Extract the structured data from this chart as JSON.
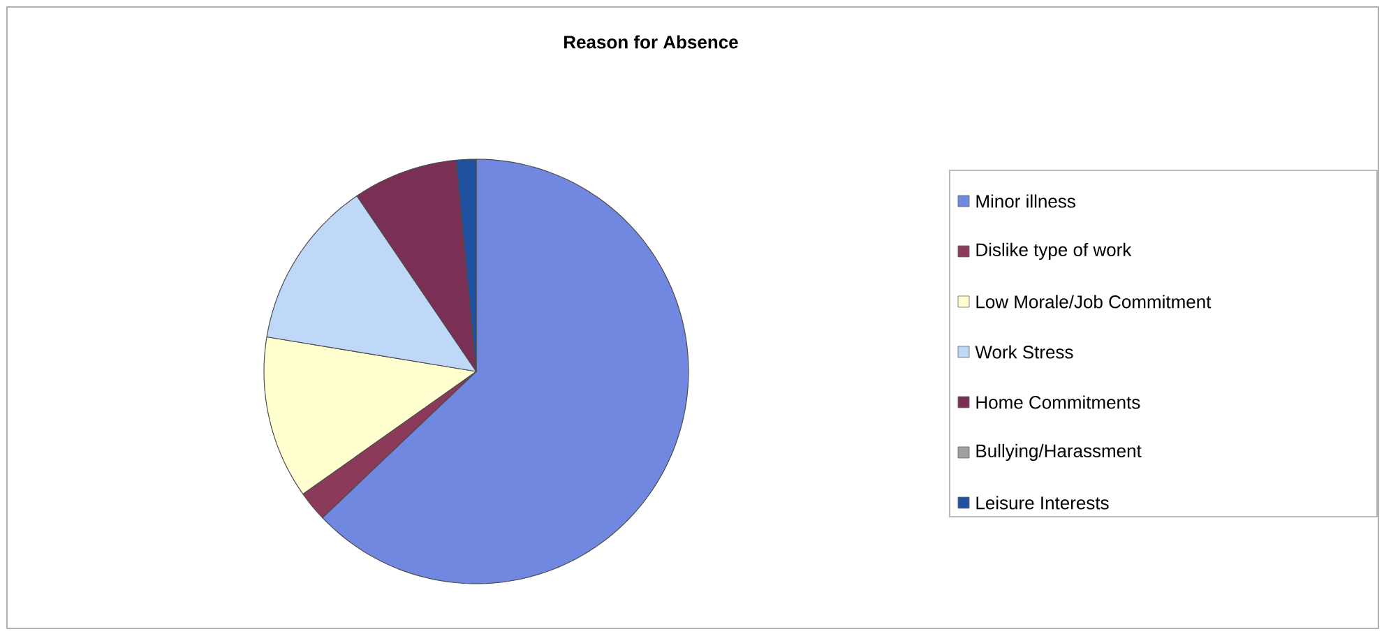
{
  "chart_data": {
    "type": "pie",
    "title": "Reason for Absence",
    "categories": [
      "Minor illness",
      "Dislike type of work",
      "Low Morale/Job Commitment",
      "Work Stress",
      "Home Commitments",
      "Bullying/Harassment",
      "Leisure Interests"
    ],
    "values": [
      62.9,
      2.3,
      12.4,
      12.9,
      8.0,
      0,
      1.5
    ],
    "colors": [
      "#7088e0",
      "#8b3a5a",
      "#ffffd0",
      "#c0d8f8",
      "#7a3055",
      "#a0a0a0",
      "#2050a0"
    ],
    "legend": "right"
  }
}
